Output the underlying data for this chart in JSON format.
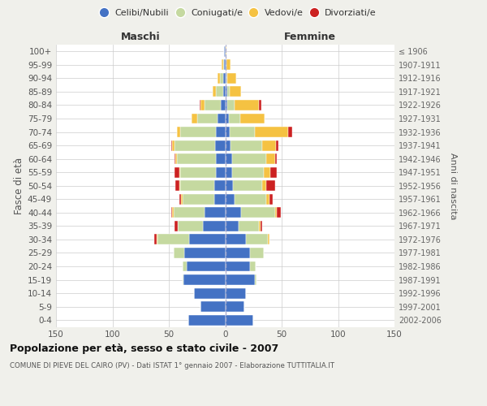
{
  "age_groups": [
    "0-4",
    "5-9",
    "10-14",
    "15-19",
    "20-24",
    "25-29",
    "30-34",
    "35-39",
    "40-44",
    "45-49",
    "50-54",
    "55-59",
    "60-64",
    "65-69",
    "70-74",
    "75-79",
    "80-84",
    "85-89",
    "90-94",
    "95-99",
    "100+"
  ],
  "birth_years": [
    "2002-2006",
    "1997-2001",
    "1992-1996",
    "1987-1991",
    "1982-1986",
    "1977-1981",
    "1972-1976",
    "1967-1971",
    "1962-1966",
    "1957-1961",
    "1952-1956",
    "1947-1951",
    "1942-1946",
    "1937-1941",
    "1932-1936",
    "1927-1931",
    "1922-1926",
    "1917-1921",
    "1912-1916",
    "1907-1911",
    "≤ 1906"
  ],
  "maschi": {
    "celibi": [
      33,
      22,
      28,
      37,
      34,
      36,
      32,
      20,
      18,
      10,
      10,
      8,
      8,
      9,
      8,
      7,
      4,
      2,
      2,
      1,
      1
    ],
    "coniugati": [
      0,
      0,
      0,
      1,
      4,
      10,
      28,
      22,
      28,
      28,
      30,
      32,
      35,
      36,
      32,
      18,
      14,
      6,
      3,
      1,
      0
    ],
    "vedovi": [
      0,
      0,
      0,
      0,
      0,
      0,
      1,
      0,
      1,
      1,
      1,
      1,
      1,
      2,
      3,
      5,
      4,
      3,
      2,
      1,
      0
    ],
    "divorziati": [
      0,
      0,
      0,
      0,
      0,
      0,
      2,
      3,
      1,
      2,
      3,
      4,
      1,
      1,
      0,
      0,
      1,
      0,
      0,
      0,
      0
    ]
  },
  "femmine": {
    "nubili": [
      25,
      17,
      18,
      26,
      22,
      22,
      18,
      12,
      14,
      8,
      7,
      6,
      6,
      5,
      4,
      3,
      2,
      2,
      1,
      1,
      0
    ],
    "coniugate": [
      0,
      0,
      0,
      2,
      5,
      12,
      20,
      18,
      30,
      28,
      26,
      28,
      30,
      28,
      22,
      10,
      6,
      2,
      1,
      0,
      0
    ],
    "vedove": [
      0,
      0,
      0,
      0,
      0,
      0,
      1,
      1,
      2,
      3,
      3,
      6,
      8,
      12,
      30,
      22,
      22,
      10,
      8,
      4,
      1
    ],
    "divorziate": [
      0,
      0,
      0,
      0,
      0,
      0,
      0,
      2,
      3,
      3,
      8,
      6,
      2,
      2,
      3,
      0,
      2,
      0,
      0,
      0,
      0
    ]
  },
  "colors": {
    "celibi": "#4472c4",
    "coniugati": "#c5d9a0",
    "vedovi": "#f5c242",
    "divorziati": "#cc2222"
  },
  "xlim": 150,
  "title": "Popolazione per età, sesso e stato civile - 2007",
  "subtitle": "COMUNE DI PIEVE DEL CAIRO (PV) - Dati ISTAT 1° gennaio 2007 - Elaborazione TUTTITALIA.IT",
  "ylabel_left": "Fasce di età",
  "ylabel_right": "Anni di nascita",
  "label_maschi": "Maschi",
  "label_femmine": "Femmine",
  "legend_labels": [
    "Celibi/Nubili",
    "Coniugati/e",
    "Vedovi/e",
    "Divorziati/e"
  ],
  "bg_color": "#f0f0eb",
  "plot_bg": "#ffffff",
  "xticks": [
    -150,
    -100,
    -50,
    0,
    50,
    100,
    150
  ],
  "xtick_labels": [
    "150",
    "100",
    "50",
    "0",
    "50",
    "100",
    "150"
  ]
}
